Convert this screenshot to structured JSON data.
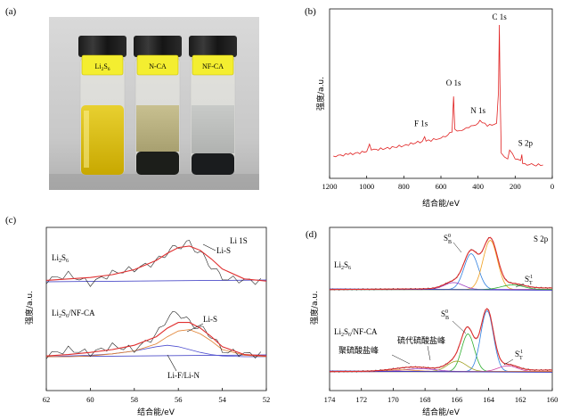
{
  "colors": {
    "survey": "#e02020",
    "raw": "#222222",
    "fit_total": "#e03030",
    "baseline": "#3030c0",
    "comp_b1": "#3080e0",
    "comp_b2": "#f0a020",
    "comp_lif": "#5050d0",
    "comp_orange": "#e08030",
    "comp_green": "#30b030",
    "comp_violet": "#a040c0",
    "comp_olive": "#a0a020",
    "comp_pink": "#d040a0"
  },
  "panels": {
    "a": {
      "label": "(a)",
      "vials": [
        {
          "label_main": "Li",
          "label_sub1": "2",
          "label_mid": "S",
          "label_sub2": "6"
        },
        {
          "label": "N-CA"
        },
        {
          "label": "NF-CA"
        }
      ]
    },
    "b": {
      "label": "(b)"
    },
    "c": {
      "label": "(c)"
    },
    "d": {
      "label": "(d)"
    }
  },
  "chart_data": [
    {
      "panel": "b",
      "type": "line",
      "title": "",
      "xlabel": "结合能/eV",
      "ylabel": "强度/a.u.",
      "xlim": [
        1200,
        0
      ],
      "x_reversed": true,
      "xticks": [
        1200,
        1000,
        800,
        600,
        400,
        200,
        0
      ],
      "peak_labels": [
        {
          "text": "C 1s",
          "x": 285
        },
        {
          "text": "O 1s",
          "x": 532
        },
        {
          "text": "F 1s",
          "x": 688
        },
        {
          "text": "N 1s",
          "x": 400
        },
        {
          "text": "S 2p",
          "x": 164
        }
      ],
      "series": [
        {
          "x": [
            1180,
            1100,
            1000,
            985,
            975,
            900,
            800,
            700,
            688,
            680,
            600,
            540,
            532,
            525,
            500,
            450,
            400,
            390,
            350,
            300,
            290,
            285,
            282,
            275,
            240,
            230,
            200,
            170,
            164,
            160,
            100,
            50
          ],
          "y": [
            0.12,
            0.13,
            0.15,
            0.2,
            0.16,
            0.17,
            0.19,
            0.22,
            0.25,
            0.22,
            0.24,
            0.28,
            0.52,
            0.3,
            0.29,
            0.31,
            0.34,
            0.36,
            0.32,
            0.34,
            0.55,
            1.0,
            0.6,
            0.14,
            0.1,
            0.16,
            0.1,
            0.09,
            0.13,
            0.07,
            0.06,
            0.06
          ]
        }
      ]
    },
    {
      "panel": "c",
      "type": "line",
      "title": "Li 1S",
      "xlabel": "结合能/eV",
      "ylabel": "强度/a.u.",
      "xlim": [
        62,
        52
      ],
      "x_reversed": true,
      "xticks": [
        62,
        60,
        58,
        56,
        54,
        52
      ],
      "sample_labels": [
        {
          "main": "Li",
          "s1": "2",
          "mid": "S",
          "s2": "6",
          "rest": ""
        },
        {
          "main": "Li",
          "s1": "2",
          "mid": "S",
          "s2": "6",
          "rest": "/NF-CA"
        }
      ],
      "annotations": [
        "Li-S",
        "Li-S",
        "Li-F/Li-N"
      ],
      "upper": {
        "x": [
          62,
          61,
          60,
          59,
          58,
          57,
          56.5,
          56,
          55.5,
          55,
          54.5,
          54,
          53,
          52
        ],
        "raw": [
          0.02,
          0.1,
          -0.02,
          0.12,
          0.18,
          0.28,
          0.42,
          0.5,
          0.54,
          0.4,
          0.22,
          0.05,
          0.02,
          0.0
        ],
        "fit": [
          0.02,
          0.04,
          0.06,
          0.1,
          0.17,
          0.3,
          0.4,
          0.48,
          0.5,
          0.44,
          0.32,
          0.18,
          0.04,
          0.01
        ]
      },
      "lower": {
        "x": [
          62,
          61,
          60,
          59,
          58,
          57,
          56.5,
          56,
          55.5,
          55,
          54.5,
          54,
          53,
          52
        ],
        "raw": [
          0.02,
          0.1,
          0.05,
          0.15,
          0.1,
          0.3,
          0.55,
          0.62,
          0.48,
          0.4,
          0.3,
          0.08,
          0.04,
          0.02
        ],
        "fit": [
          0.01,
          0.03,
          0.06,
          0.1,
          0.16,
          0.28,
          0.4,
          0.48,
          0.48,
          0.4,
          0.28,
          0.14,
          0.03,
          0.01
        ],
        "comp_lis": [
          0.0,
          0.0,
          0.01,
          0.04,
          0.08,
          0.18,
          0.28,
          0.36,
          0.38,
          0.32,
          0.22,
          0.1,
          0.02,
          0.0
        ],
        "comp_lif": [
          0.0,
          0.01,
          0.02,
          0.04,
          0.08,
          0.14,
          0.16,
          0.14,
          0.1,
          0.06,
          0.03,
          0.01,
          0.0,
          0.0
        ]
      }
    },
    {
      "panel": "d",
      "type": "line",
      "title": "S 2p",
      "xlabel": "结合能/eV",
      "ylabel": "强度/a.u.",
      "xlim": [
        174,
        160
      ],
      "x_reversed": true,
      "xticks": [
        174,
        172,
        170,
        168,
        166,
        164,
        162,
        160
      ],
      "sample_labels": [
        {
          "main": "Li",
          "s1": "2",
          "mid": "S",
          "s2": "6",
          "rest": ""
        },
        {
          "main": "Li",
          "s1": "2",
          "mid": "S",
          "s2": "6",
          "rest": "/NF-CA"
        }
      ],
      "annotations": [
        "聚硫酸盐峰",
        "硫代硫酸盐峰"
      ]
    }
  ]
}
